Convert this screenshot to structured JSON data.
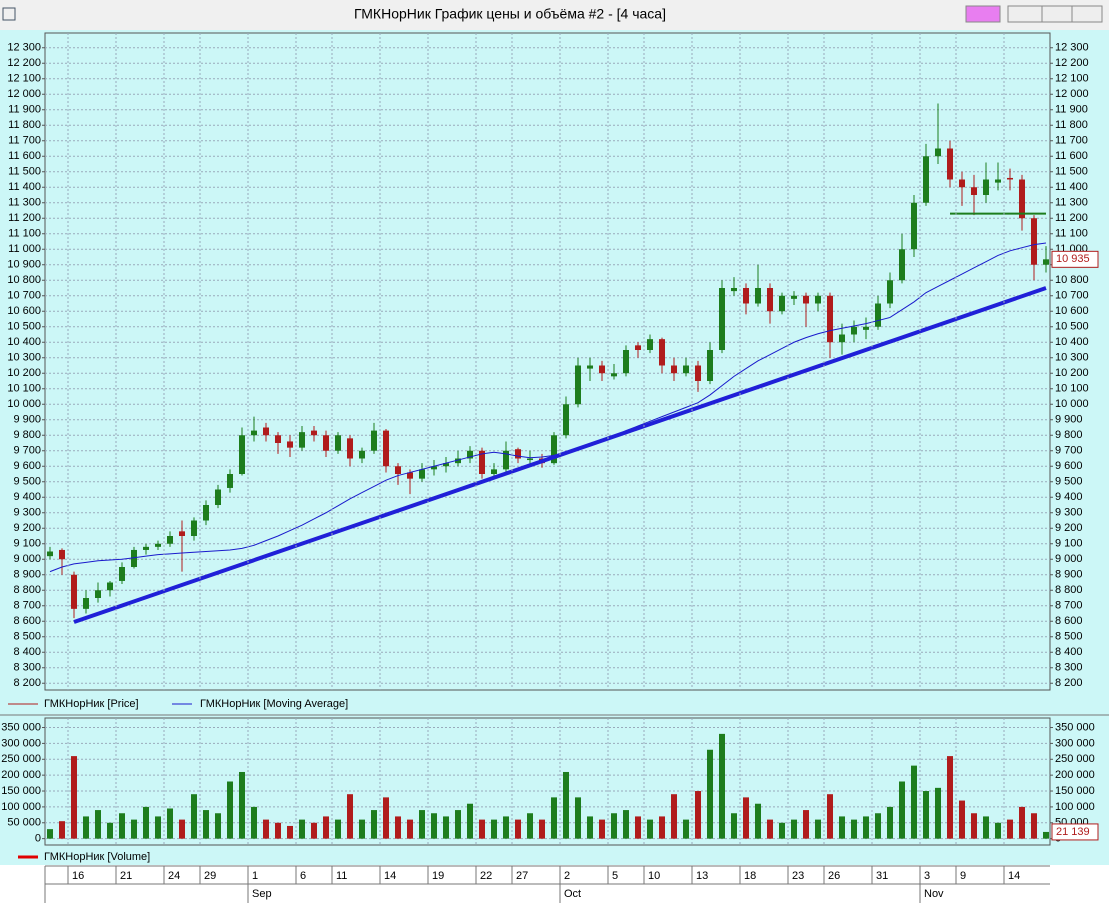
{
  "window": {
    "title": "ГМКНорНик График цены и объёма #2 - [4 часа]"
  },
  "chart_data": [
    {
      "type": "candlestick",
      "grid": true,
      "up_color": "#1d7d1d",
      "down_color": "#b01c1c",
      "ylim": [
        8150,
        12350
      ],
      "yticks": [
        {
          "value": 8200,
          "label": "8 200"
        },
        {
          "value": 8300,
          "label": "8 300"
        },
        {
          "value": 8400,
          "label": "8 400"
        },
        {
          "value": 8500,
          "label": "8 500"
        },
        {
          "value": 8600,
          "label": "8 600"
        },
        {
          "value": 8700,
          "label": "8 700"
        },
        {
          "value": 8800,
          "label": "8 800"
        },
        {
          "value": 8900,
          "label": "8 900"
        },
        {
          "value": 9000,
          "label": "9 000"
        },
        {
          "value": 9100,
          "label": "9 100"
        },
        {
          "value": 9200,
          "label": "9 200"
        },
        {
          "value": 9300,
          "label": "9 300"
        },
        {
          "value": 9400,
          "label": "9 400"
        },
        {
          "value": 9500,
          "label": "9 500"
        },
        {
          "value": 9600,
          "label": "9 600"
        },
        {
          "value": 9700,
          "label": "9 700"
        },
        {
          "value": 9800,
          "label": "9 800"
        },
        {
          "value": 9900,
          "label": "9 900"
        },
        {
          "value": 10000,
          "label": "10 000"
        },
        {
          "value": 10100,
          "label": "10 100"
        },
        {
          "value": 10200,
          "label": "10 200"
        },
        {
          "value": 10300,
          "label": "10 300"
        },
        {
          "value": 10400,
          "label": "10 400"
        },
        {
          "value": 10500,
          "label": "10 500"
        },
        {
          "value": 10600,
          "label": "10 600"
        },
        {
          "value": 10700,
          "label": "10 700"
        },
        {
          "value": 10800,
          "label": "10 800"
        },
        {
          "value": 10900,
          "label": "10 900"
        },
        {
          "value": 11000,
          "label": "11 000"
        },
        {
          "value": 11100,
          "label": "11 100"
        },
        {
          "value": 11200,
          "label": "11 200"
        },
        {
          "value": 11300,
          "label": "11 300"
        },
        {
          "value": 11400,
          "label": "11 400"
        },
        {
          "value": 11500,
          "label": "11 500"
        },
        {
          "value": 11600,
          "label": "11 600"
        },
        {
          "value": 11700,
          "label": "11 700"
        },
        {
          "value": 11800,
          "label": "11 800"
        },
        {
          "value": 11900,
          "label": "11 900"
        },
        {
          "value": 12000,
          "label": "12 000"
        },
        {
          "value": 12100,
          "label": "12 100"
        },
        {
          "value": 12200,
          "label": "12 200"
        },
        {
          "value": 12300,
          "label": "12 300"
        }
      ],
      "price": {
        "name": "ГМКНорНик [Price]",
        "color": "#b01c1c",
        "open": [
          9020,
          9060,
          8900,
          8680,
          8750,
          8800,
          8860,
          8950,
          9060,
          9080,
          9100,
          9180,
          9150,
          9250,
          9350,
          9460,
          9550,
          9800,
          9850,
          9800,
          9760,
          9720,
          9830,
          9800,
          9700,
          9780,
          9650,
          9700,
          9830,
          9600,
          9560,
          9520,
          9580,
          9600,
          9620,
          9650,
          9700,
          9550,
          9580,
          9710,
          9640,
          9650,
          9620,
          9800,
          10000,
          10230,
          10250,
          10180,
          10200,
          10380,
          10350,
          10420,
          10250,
          10200,
          10250,
          10150,
          10350,
          10730,
          10750,
          10650,
          10750,
          10600,
          10680,
          10700,
          10650,
          10700,
          10400,
          10450,
          10480,
          10500,
          10650,
          10800,
          11000,
          11300,
          11600,
          11650,
          11450,
          11400,
          11350,
          11430,
          11460,
          11450,
          11200,
          10900
        ],
        "high": [
          9080,
          9070,
          8920,
          8800,
          8850,
          8860,
          8980,
          9080,
          9100,
          9120,
          9180,
          9250,
          9270,
          9380,
          9480,
          9580,
          9850,
          9920,
          9880,
          9820,
          9800,
          9860,
          9860,
          9830,
          9820,
          9800,
          9720,
          9880,
          9840,
          9620,
          9580,
          9620,
          9640,
          9660,
          9700,
          9730,
          9720,
          9620,
          9760,
          9720,
          9700,
          9680,
          9820,
          10050,
          10300,
          10300,
          10280,
          10260,
          10380,
          10400,
          10450,
          10430,
          10300,
          10300,
          10280,
          10400,
          10800,
          10820,
          10780,
          10900,
          10780,
          10720,
          10730,
          10720,
          10720,
          10720,
          10520,
          10540,
          10560,
          10700,
          10850,
          11100,
          11350,
          11680,
          11940,
          11700,
          11500,
          11480,
          11560,
          11560,
          11520,
          11480,
          11220,
          11020
        ],
        "low": [
          9000,
          8900,
          8620,
          8650,
          8720,
          8760,
          8840,
          8940,
          9030,
          9060,
          9080,
          8920,
          9120,
          9220,
          9330,
          9430,
          9540,
          9760,
          9760,
          9680,
          9660,
          9700,
          9760,
          9660,
          9680,
          9600,
          9620,
          9680,
          9560,
          9480,
          9420,
          9500,
          9540,
          9560,
          9600,
          9620,
          9520,
          9520,
          9560,
          9620,
          9600,
          9590,
          9610,
          9780,
          9980,
          10150,
          10150,
          10160,
          10180,
          10300,
          10330,
          10200,
          10150,
          10180,
          10080,
          10130,
          10330,
          10700,
          10580,
          10630,
          10520,
          10580,
          10640,
          10500,
          10600,
          10300,
          10320,
          10400,
          10420,
          10480,
          10620,
          10780,
          10950,
          11280,
          11550,
          11400,
          11280,
          11220,
          11300,
          11380,
          11380,
          11120,
          10800,
          10850
        ],
        "close": [
          9050,
          9000,
          8680,
          8750,
          8800,
          8850,
          8950,
          9060,
          9080,
          9100,
          9150,
          9150,
          9250,
          9350,
          9450,
          9550,
          9800,
          9830,
          9800,
          9750,
          9720,
          9820,
          9800,
          9700,
          9800,
          9650,
          9700,
          9830,
          9600,
          9550,
          9520,
          9580,
          9600,
          9620,
          9650,
          9700,
          9550,
          9580,
          9700,
          9650,
          9650,
          9620,
          9800,
          10000,
          10250,
          10250,
          10200,
          10200,
          10350,
          10350,
          10420,
          10250,
          10200,
          10250,
          10150,
          10350,
          10750,
          10750,
          10650,
          10750,
          10600,
          10700,
          10700,
          10650,
          10700,
          10400,
          10450,
          10500,
          10500,
          10650,
          10800,
          11000,
          11300,
          11600,
          11650,
          11450,
          11400,
          11350,
          11450,
          11450,
          11450,
          11200,
          10900,
          10935
        ]
      },
      "moving_average": {
        "name": "ГМКНорНик [Moving Average]",
        "color": "#1a1acc",
        "values": [
          8920,
          8950,
          8970,
          8980,
          8990,
          8995,
          9000,
          9010,
          9020,
          9030,
          9035,
          9040,
          9045,
          9050,
          9055,
          9060,
          9070,
          9090,
          9120,
          9150,
          9185,
          9220,
          9260,
          9300,
          9345,
          9390,
          9430,
          9470,
          9510,
          9540,
          9560,
          9580,
          9600,
          9620,
          9640,
          9660,
          9680,
          9690,
          9680,
          9665,
          9655,
          9660,
          9670,
          9690,
          9710,
          9730,
          9760,
          9790,
          9830,
          9860,
          9890,
          9920,
          9950,
          9980,
          10010,
          10060,
          10120,
          10180,
          10230,
          10280,
          10320,
          10360,
          10400,
          10430,
          10455,
          10475,
          10490,
          10505,
          10520,
          10540,
          10560,
          10610,
          10660,
          10720,
          10760,
          10800,
          10840,
          10880,
          10920,
          10960,
          10990,
          11010,
          11030,
          11040
        ]
      },
      "trendline": {
        "color": "#2020d8",
        "x": [
          2,
          83
        ],
        "values": [
          8595,
          10750
        ]
      },
      "level": {
        "color": "#1d7d1d",
        "x": [
          75,
          83
        ],
        "values": [
          11230,
          11230
        ]
      },
      "last_price": {
        "value": 10935,
        "label": "10 935"
      }
    },
    {
      "type": "bar",
      "grid": true,
      "ylim": [
        -20000,
        380000
      ],
      "yticks": [
        0,
        {
          "value": 50000,
          "label": "50 000"
        },
        {
          "value": 100000,
          "label": "100 000"
        },
        {
          "value": 150000,
          "label": "150 000"
        },
        {
          "value": 200000,
          "label": "200 000"
        },
        {
          "value": 250000,
          "label": "250 000"
        },
        {
          "value": 300000,
          "label": "300 000"
        },
        {
          "value": 350000,
          "label": "350 000"
        }
      ],
      "series": [
        {
          "name": "ГМКНорНик [Volume]",
          "color": "#e00000",
          "values": [
            30000,
            55000,
            260000,
            70000,
            90000,
            50000,
            80000,
            60000,
            100000,
            70000,
            95000,
            60000,
            140000,
            90000,
            80000,
            180000,
            210000,
            100000,
            60000,
            50000,
            40000,
            60000,
            50000,
            70000,
            60000,
            140000,
            60000,
            90000,
            130000,
            70000,
            60000,
            90000,
            80000,
            70000,
            90000,
            110000,
            60000,
            60000,
            70000,
            60000,
            80000,
            60000,
            130000,
            210000,
            130000,
            70000,
            60000,
            80000,
            90000,
            70000,
            60000,
            70000,
            140000,
            60000,
            150000,
            280000,
            330000,
            80000,
            130000,
            110000,
            60000,
            50000,
            60000,
            90000,
            60000,
            140000,
            70000,
            60000,
            70000,
            80000,
            100000,
            180000,
            230000,
            150000,
            160000,
            260000,
            120000,
            80000,
            70000,
            50000,
            60000,
            100000,
            80000,
            21139
          ]
        }
      ],
      "last_volume": {
        "value": 21139,
        "label": "21 139"
      },
      "categories": [
        null,
        null,
        "16",
        null,
        null,
        null,
        "21",
        null,
        null,
        null,
        "24",
        null,
        null,
        "29",
        null,
        null,
        null,
        "1",
        null,
        null,
        null,
        "6",
        null,
        null,
        "11",
        null,
        null,
        null,
        "14",
        null,
        null,
        null,
        "19",
        null,
        null,
        null,
        "22",
        null,
        null,
        "27",
        null,
        null,
        null,
        "2",
        null,
        null,
        null,
        "5",
        null,
        null,
        "10",
        null,
        null,
        null,
        "13",
        null,
        null,
        null,
        "18",
        null,
        null,
        null,
        "23",
        null,
        null,
        "26",
        null,
        null,
        null,
        "31",
        null,
        null,
        null,
        "3",
        null,
        null,
        "9",
        null,
        null,
        null,
        "14",
        null,
        null,
        null
      ],
      "months": [
        null,
        null,
        null,
        null,
        null,
        null,
        null,
        null,
        null,
        null,
        null,
        null,
        null,
        null,
        null,
        null,
        null,
        "Sep",
        null,
        null,
        null,
        null,
        null,
        null,
        null,
        null,
        null,
        null,
        null,
        null,
        null,
        null,
        null,
        null,
        null,
        null,
        null,
        null,
        null,
        null,
        null,
        null,
        null,
        "Oct",
        null,
        null,
        null,
        null,
        null,
        null,
        null,
        null,
        null,
        null,
        null,
        null,
        null,
        null,
        null,
        null,
        null,
        null,
        null,
        null,
        null,
        null,
        null,
        null,
        null,
        null,
        null,
        null,
        null,
        "Nov",
        null,
        null,
        null,
        null,
        null,
        null,
        null,
        null,
        null,
        null
      ]
    }
  ]
}
